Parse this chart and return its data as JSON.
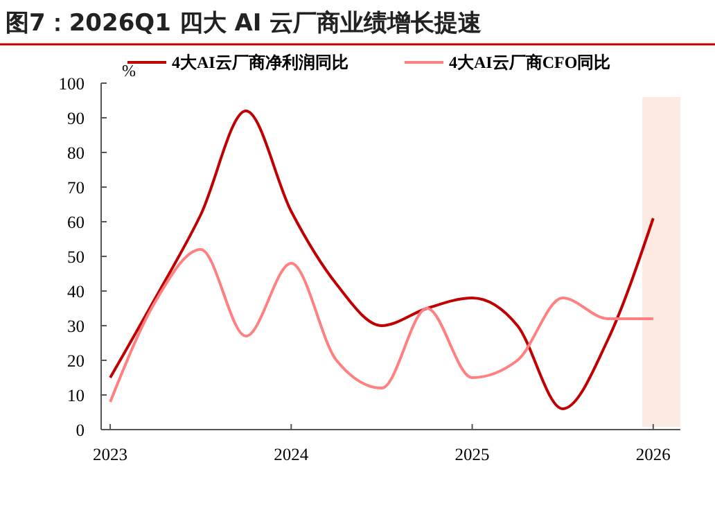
{
  "chart_data": {
    "type": "line",
    "title": "图7：2026Q1 四大 AI 云厂商业绩增长提速",
    "ylabel": "%",
    "x": [
      2023,
      2023.25,
      2023.5,
      2023.75,
      2024,
      2024.25,
      2024.5,
      2024.75,
      2025,
      2025.25,
      2025.5,
      2025.75,
      2026
    ],
    "series": [
      {
        "name": "4大AI云厂商净利润同比",
        "color": "#c00000",
        "values": [
          15,
          38,
          62,
          92,
          63,
          42,
          30,
          35,
          38,
          30,
          6,
          26,
          61
        ]
      },
      {
        "name": "4大AI云厂商CFO同比",
        "color": "#ff8080",
        "values": [
          8,
          37,
          52,
          27,
          48,
          20,
          12,
          35,
          15,
          20,
          38,
          32,
          32
        ]
      }
    ],
    "xlim": [
      2022.95,
      2026.15
    ],
    "xticks": [
      2023,
      2024,
      2025,
      2026
    ],
    "ylim": [
      0,
      100
    ],
    "yticks": [
      0,
      10,
      20,
      30,
      40,
      50,
      60,
      70,
      80,
      90,
      100
    ],
    "bands": [
      {
        "axis": "x",
        "from": 2025.94,
        "to": 2026.15,
        "color": "#fcebe2"
      }
    ],
    "legend": "top",
    "grid": false
  }
}
